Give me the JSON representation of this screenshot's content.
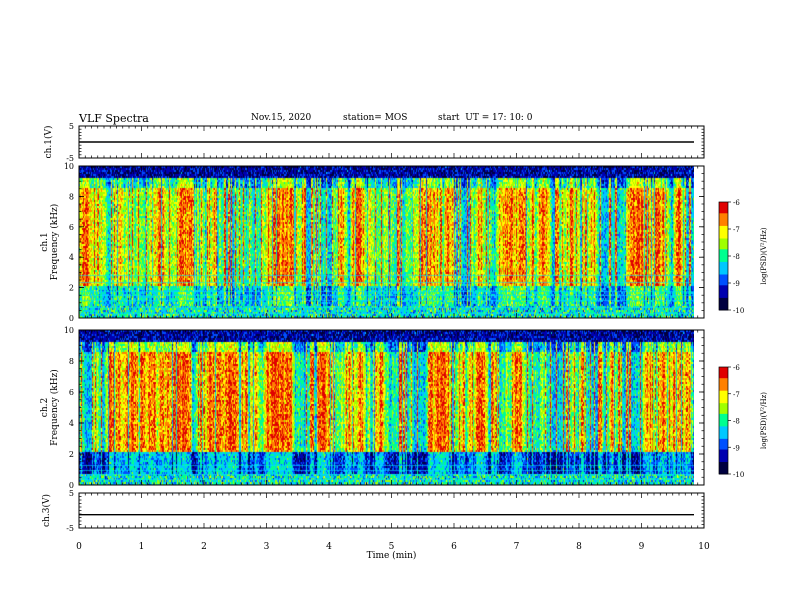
{
  "header": {
    "title": "VLF Spectra",
    "date": "Nov.15, 2020",
    "station": "station= MOS",
    "start_label": "start  UT =",
    "start_time": "17: 10: 0"
  },
  "colors": {
    "cmap": [
      "#000040",
      "#0000b0",
      "#0050ff",
      "#00c8ff",
      "#00ff90",
      "#a0ff00",
      "#ffff00",
      "#ff8000",
      "#e00000",
      "#ffffff"
    ]
  },
  "chart_data": [
    {
      "type": "line",
      "panel": "ch.1 voltage",
      "ylabel": "ch.1(V)",
      "ylim": [
        -5,
        5
      ],
      "yticks": [
        5,
        -5
      ],
      "x": [
        0,
        9.84
      ],
      "y": [
        0,
        0
      ]
    },
    {
      "type": "heatmap",
      "panel": "ch.1 spectrogram",
      "ylabel_top": "ch.1",
      "ylabel": "Frequency (kHz)",
      "ylim": [
        0,
        10
      ],
      "yticks": [
        0,
        2,
        4,
        6,
        8,
        10
      ],
      "xlim": [
        0,
        10
      ],
      "data_end": 9.84,
      "colorbar": {
        "label": "log(PSD)(V²/Hz)",
        "ticks": [
          -6,
          -7,
          -8,
          -9,
          -10
        ],
        "range": [
          -10,
          -6
        ]
      }
    },
    {
      "type": "heatmap",
      "panel": "ch.2 spectrogram",
      "ylabel_top": "ch.2",
      "ylabel": "Frequency (kHz)",
      "ylim": [
        0,
        10
      ],
      "yticks": [
        0,
        2,
        4,
        6,
        8,
        10
      ],
      "xlim": [
        0,
        10
      ],
      "data_end": 9.84,
      "colorbar": {
        "label": "log(PSD)(V²/Hz)",
        "ticks": [
          -6,
          -7,
          -8,
          -9,
          -10
        ],
        "range": [
          -10,
          -6
        ]
      }
    },
    {
      "type": "line",
      "panel": "ch.3 voltage",
      "ylabel": "ch.3(V)",
      "ylim": [
        -5,
        5
      ],
      "yticks": [
        5,
        -5
      ],
      "x": [
        0,
        9.84
      ],
      "y": [
        -1.2,
        -1.2
      ]
    }
  ],
  "xaxis": {
    "label": "Time (min)",
    "ticks": [
      0,
      1,
      2,
      3,
      4,
      5,
      6,
      7,
      8,
      9,
      10
    ]
  }
}
